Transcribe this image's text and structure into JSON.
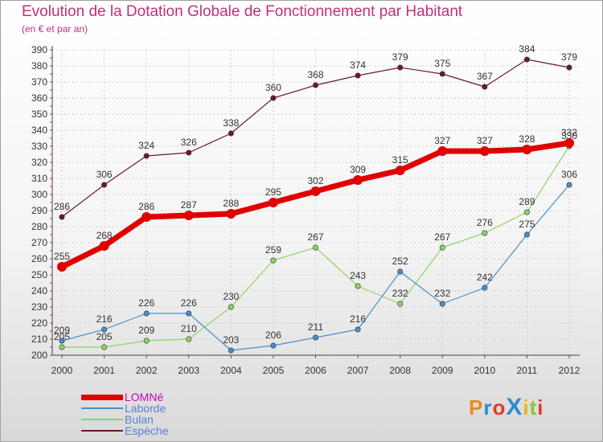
{
  "title": "Evolution de la Dotation Globale de Fonctionnement par Habitant",
  "subtitle": "(en € et par an)",
  "logo": {
    "text": "ProXiti"
  },
  "chart_data": {
    "type": "line",
    "x": [
      "2000",
      "2001",
      "2002",
      "2003",
      "2004",
      "2005",
      "2006",
      "2007",
      "2008",
      "2009",
      "2010",
      "2011",
      "2012"
    ],
    "ylim": [
      200,
      390
    ],
    "yticks": [
      200,
      210,
      220,
      230,
      240,
      250,
      260,
      270,
      280,
      290,
      300,
      310,
      320,
      330,
      340,
      350,
      360,
      370,
      380,
      390
    ],
    "grid": true,
    "legend": "bottom-left",
    "series": [
      {
        "name": "Espèche",
        "color": "#6b1a28",
        "values": [
          286,
          306,
          324,
          326,
          338,
          360,
          368,
          374,
          379,
          375,
          367,
          384,
          379
        ]
      },
      {
        "name": "Bulan",
        "color": "#8cd46a",
        "values": [
          205,
          205,
          209,
          210,
          230,
          259,
          267,
          243,
          232,
          267,
          276,
          289,
          330
        ]
      },
      {
        "name": "Laborde",
        "color": "#4a8fcc",
        "values": [
          209,
          216,
          226,
          226,
          203,
          206,
          211,
          216,
          252,
          232,
          242,
          275,
          306
        ]
      },
      {
        "name": "LOMNé",
        "color": "#e00000",
        "values": [
          255,
          268,
          286,
          287,
          288,
          295,
          302,
          309,
          315,
          327,
          327,
          328,
          332
        ]
      }
    ],
    "legend_order": [
      "LOMNé",
      "Laborde",
      "Bulan",
      "Espèche"
    ]
  }
}
